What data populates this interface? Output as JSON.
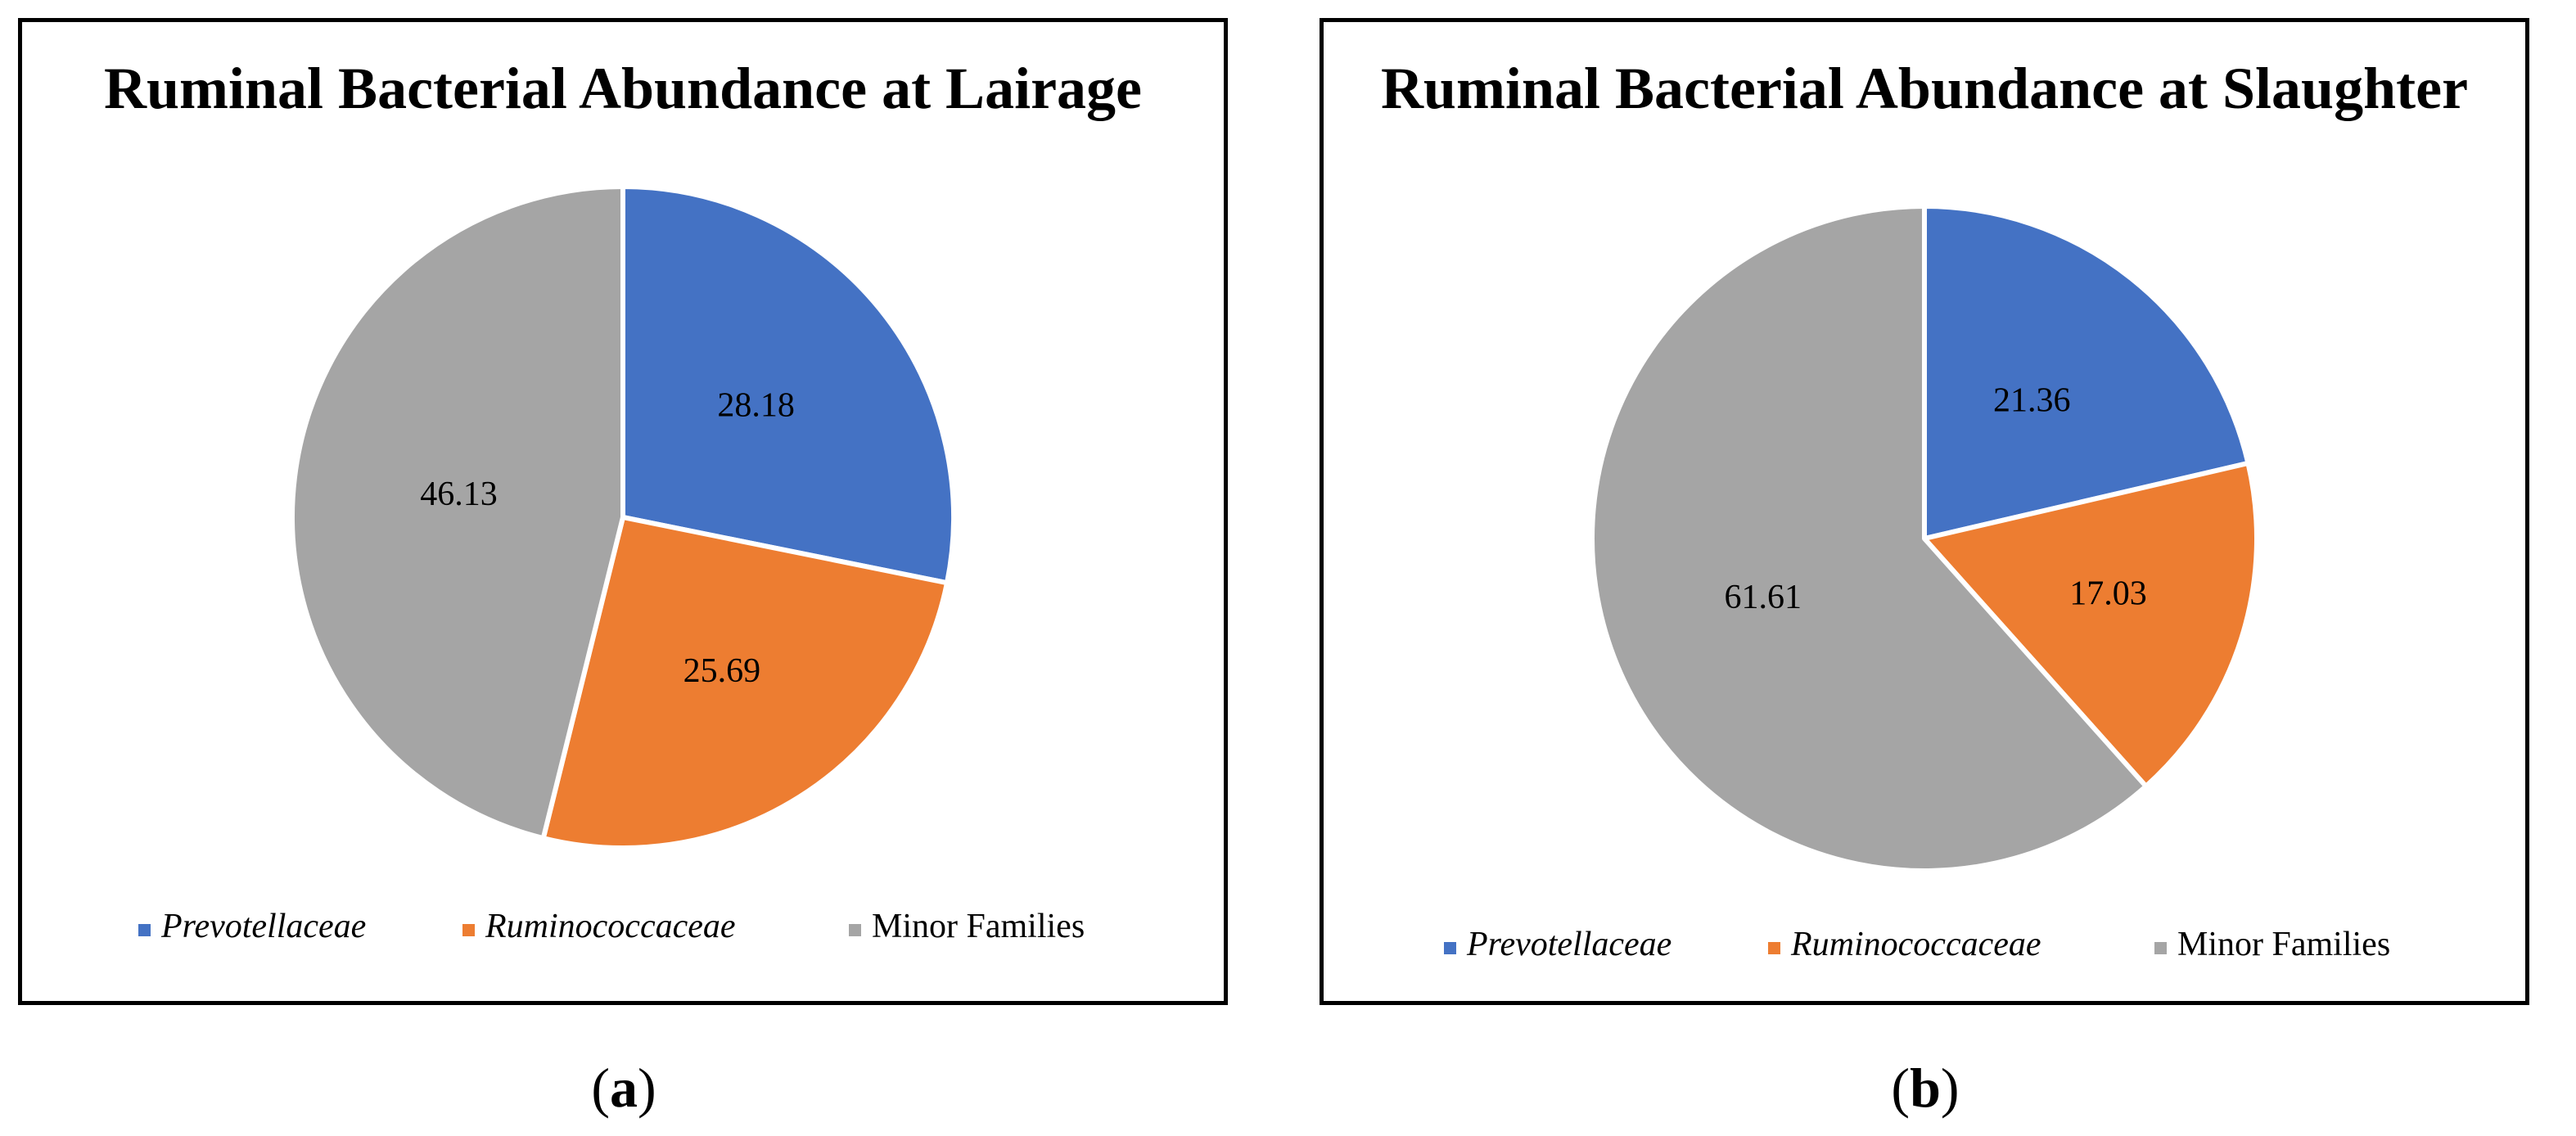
{
  "colors": {
    "Prevotellaceae": "#4472C4",
    "Ruminococcaceae": "#ED7D31",
    "Minor Families": "#A5A5A5"
  },
  "chart_data": [
    {
      "type": "pie",
      "title": "Ruminal Bacterial Abundance at Lairage",
      "categories": [
        "Prevotellaceae",
        "Ruminococcaceae",
        "Minor Families"
      ],
      "values": [
        28.18,
        25.69,
        46.13
      ],
      "data_labels": [
        "28.18",
        "25.69",
        "46.13"
      ],
      "legend": {
        "placement": "bottom",
        "entries": [
          {
            "label": "Prevotellaceae",
            "italic": true
          },
          {
            "label": "Ruminococcaceae",
            "italic": true
          },
          {
            "label": "Minor Families",
            "italic": false
          }
        ]
      },
      "caption": {
        "open": "(",
        "letter": "a",
        "close": ")"
      }
    },
    {
      "type": "pie",
      "title": "Ruminal Bacterial Abundance at Slaughter",
      "categories": [
        "Prevotellaceae",
        "Ruminococcaceae",
        "Minor Families"
      ],
      "values": [
        21.36,
        17.03,
        61.61
      ],
      "data_labels": [
        "21.36",
        "17.03",
        "61.61"
      ],
      "legend": {
        "placement": "bottom",
        "entries": [
          {
            "label": "Prevotellaceae",
            "italic": true
          },
          {
            "label": "Ruminococcaceae",
            "italic": true
          },
          {
            "label": "Minor Families",
            "italic": false
          }
        ]
      },
      "caption": {
        "open": "(",
        "letter": "b",
        "close": ")"
      }
    }
  ]
}
